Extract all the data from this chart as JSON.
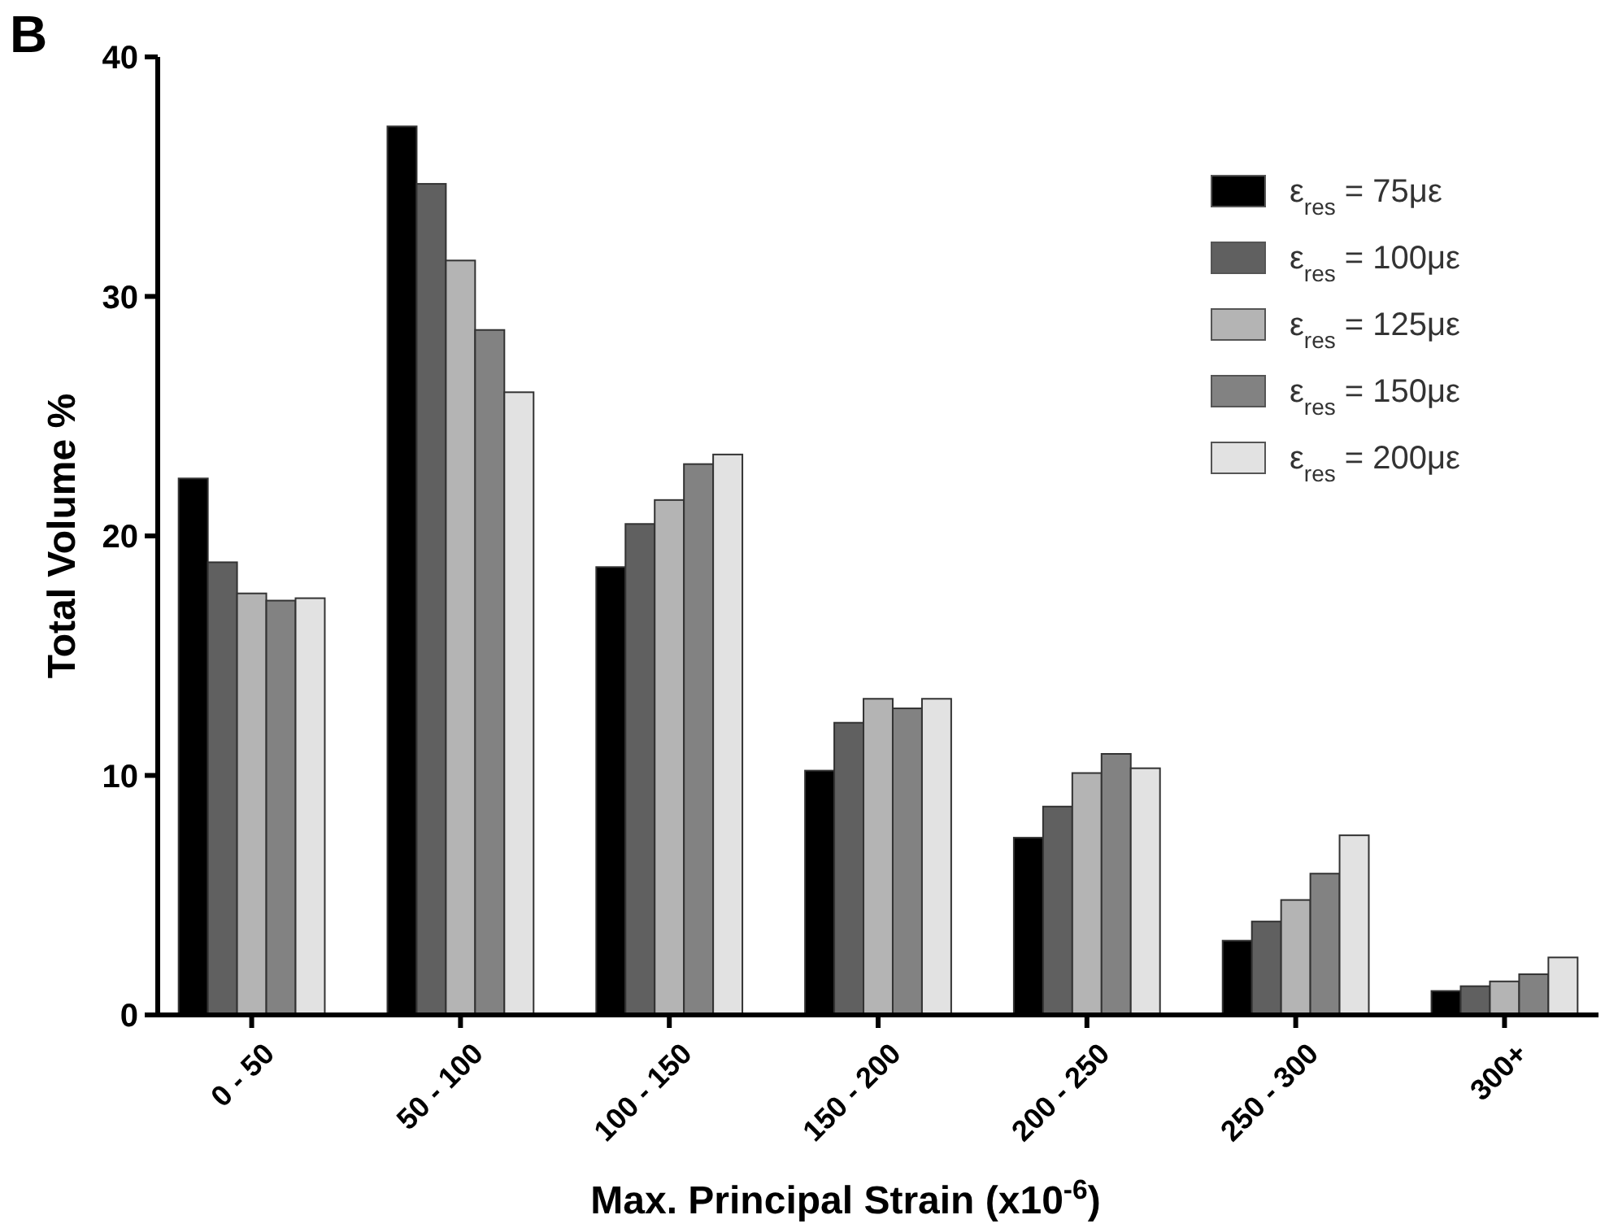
{
  "chart_data": {
    "type": "bar",
    "xlabel": "Max. Principal Strain (x10$^{-6}$)",
    "ylabel": "Total Volume %",
    "annotations": [
      "B"
    ],
    "categories": [
      "0 - 50",
      "50 - 100",
      "100 - 150",
      "150 - 200",
      "200 - 250",
      "250 - 300",
      "300+"
    ],
    "series": [
      {
        "name": "ε$_{res}$ = 75με",
        "color": "#000000",
        "values": [
          22.4,
          37.1,
          18.7,
          10.2,
          7.4,
          3.1,
          1.0
        ]
      },
      {
        "name": "ε$_{res}$ = 100με",
        "color": "#606060",
        "values": [
          18.9,
          34.7,
          20.5,
          12.2,
          8.7,
          3.9,
          1.2
        ]
      },
      {
        "name": "ε$_{res}$ = 125με",
        "color": "#b4b4b4",
        "values": [
          17.6,
          31.5,
          21.5,
          13.2,
          10.1,
          4.8,
          1.4
        ]
      },
      {
        "name": "ε$_{res}$ = 150με",
        "color": "#828282",
        "values": [
          17.3,
          28.6,
          23.0,
          12.8,
          10.9,
          5.9,
          1.7
        ]
      },
      {
        "name": "ε$_{res}$ = 200με",
        "color": "#e2e2e2",
        "values": [
          17.4,
          26.0,
          23.4,
          13.2,
          10.3,
          7.5,
          2.4
        ]
      }
    ],
    "ylim": [
      0,
      40
    ],
    "yticks": [
      0,
      10,
      20,
      30,
      40
    ],
    "grid": false,
    "legend": "top right"
  }
}
